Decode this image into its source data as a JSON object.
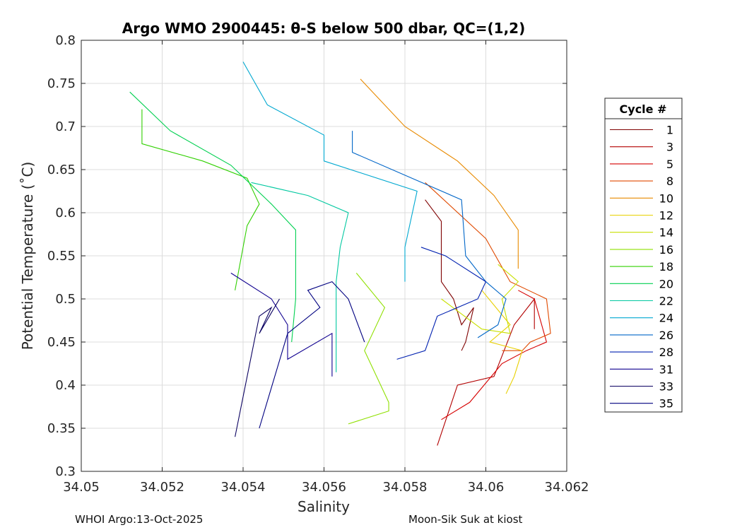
{
  "chart_data": {
    "type": "line",
    "title": "Argo WMO 2900445: θ-S below 500 dbar,  QC=(1,2)",
    "xlabel": "Salinity",
    "ylabel": "Potential Temperature (˚C)",
    "xlim": [
      34.05,
      34.062
    ],
    "ylim": [
      0.3,
      0.8
    ],
    "xticks": [
      34.05,
      34.052,
      34.054,
      34.056,
      34.058,
      34.06,
      34.062
    ],
    "xtick_labels": [
      "34.05",
      "34.052",
      "34.054",
      "34.056",
      "34.058",
      "34.06",
      "34.062"
    ],
    "yticks": [
      0.3,
      0.35,
      0.4,
      0.45,
      0.5,
      0.55,
      0.6,
      0.65,
      0.7,
      0.75,
      0.8
    ],
    "ytick_labels": [
      "0.3",
      "0.35",
      "0.4",
      "0.45",
      "0.5",
      "0.55",
      "0.6",
      "0.65",
      "0.7",
      "0.75",
      "0.8"
    ],
    "grid": true,
    "legend_title": "Cycle #",
    "legend_position": "outside-right",
    "series": [
      {
        "name": "1",
        "color": "#7f0000",
        "x": [
          34.0585,
          34.0589,
          34.0589,
          34.0592,
          34.0594,
          34.0597,
          34.0595,
          34.0594
        ],
        "y": [
          0.615,
          0.59,
          0.52,
          0.5,
          0.47,
          0.49,
          0.45,
          0.44
        ]
      },
      {
        "name": "3",
        "color": "#b20000",
        "x": [
          34.0588,
          34.0593,
          34.0602,
          34.0607,
          34.0612,
          34.0612
        ],
        "y": [
          0.33,
          0.4,
          0.41,
          0.47,
          0.5,
          0.465
        ]
      },
      {
        "name": "5",
        "color": "#d60000",
        "x": [
          34.0589,
          34.0596,
          34.0604,
          34.061,
          34.0615,
          34.0612,
          34.0608
        ],
        "y": [
          0.36,
          0.38,
          0.425,
          0.44,
          0.45,
          0.5,
          0.51
        ]
      },
      {
        "name": "8",
        "color": "#e04a00",
        "x": [
          34.0585,
          34.06,
          34.0606,
          34.0615,
          34.0616,
          34.0611,
          34.0609,
          34.0604
        ],
        "y": [
          0.635,
          0.57,
          0.52,
          0.5,
          0.46,
          0.45,
          0.44,
          0.44
        ]
      },
      {
        "name": "10",
        "color": "#e88a00",
        "x": [
          34.0569,
          34.058,
          34.0593,
          34.0602,
          34.0608,
          34.0608
        ],
        "y": [
          0.755,
          0.7,
          0.66,
          0.62,
          0.58,
          0.535
        ]
      },
      {
        "name": "12",
        "color": "#e8d000",
        "x": [
          34.0599,
          34.0606,
          34.0601,
          34.0609,
          34.0607,
          34.0605
        ],
        "y": [
          0.51,
          0.47,
          0.45,
          0.44,
          0.41,
          0.39
        ]
      },
      {
        "name": "14",
        "color": "#c8e000",
        "x": [
          34.0589,
          34.0599,
          34.0606,
          34.0604,
          34.0608,
          34.0603
        ],
        "y": [
          0.5,
          0.465,
          0.46,
          0.5,
          0.52,
          0.54
        ]
      },
      {
        "name": "16",
        "color": "#8fe000",
        "x": [
          34.0566,
          34.0576,
          34.0576,
          34.057,
          34.0575,
          34.0568
        ],
        "y": [
          0.355,
          0.37,
          0.38,
          0.44,
          0.49,
          0.53
        ]
      },
      {
        "name": "18",
        "color": "#30d000",
        "x": [
          34.0515,
          34.0515,
          34.053,
          34.0541,
          34.0544,
          34.0541,
          34.0538
        ],
        "y": [
          0.72,
          0.68,
          0.66,
          0.64,
          0.61,
          0.585,
          0.51
        ]
      },
      {
        "name": "20",
        "color": "#00d050",
        "x": [
          34.0512,
          34.0522,
          34.0537,
          34.0547,
          34.0553,
          34.0553,
          34.0552
        ],
        "y": [
          0.74,
          0.695,
          0.655,
          0.61,
          0.58,
          0.5,
          0.45
        ]
      },
      {
        "name": "22",
        "color": "#00c8a0",
        "x": [
          34.0542,
          34.0556,
          34.0566,
          34.0564,
          34.0563,
          34.0563
        ],
        "y": [
          0.635,
          0.62,
          0.6,
          0.56,
          0.52,
          0.415
        ]
      },
      {
        "name": "24",
        "color": "#00a8d0",
        "x": [
          34.054,
          34.0546,
          34.056,
          34.056,
          34.0583,
          34.058,
          34.058
        ],
        "y": [
          0.775,
          0.725,
          0.69,
          0.66,
          0.625,
          0.56,
          0.52
        ]
      },
      {
        "name": "26",
        "color": "#0066c8",
        "x": [
          34.0567,
          34.0567,
          34.0594,
          34.0595,
          34.06,
          34.0605,
          34.0603,
          34.0598
        ],
        "y": [
          0.695,
          0.67,
          0.615,
          0.55,
          0.52,
          0.5,
          0.47,
          0.455
        ]
      },
      {
        "name": "28",
        "color": "#0020b0",
        "x": [
          34.0584,
          34.059,
          34.06,
          34.0598,
          34.0588,
          34.0585,
          34.0578
        ],
        "y": [
          0.56,
          0.55,
          0.52,
          0.5,
          0.48,
          0.44,
          0.43
        ]
      },
      {
        "name": "31",
        "color": "#100090",
        "x": [
          34.0537,
          34.0547,
          34.0551,
          34.0551,
          34.0562,
          34.0562
        ],
        "y": [
          0.53,
          0.5,
          0.47,
          0.43,
          0.46,
          0.41
        ]
      },
      {
        "name": "33",
        "color": "#0a0060",
        "x": [
          34.0538,
          34.0544,
          34.0547,
          34.0544,
          34.0549
        ],
        "y": [
          0.34,
          0.48,
          0.49,
          0.46,
          0.5
        ]
      },
      {
        "name": "35",
        "color": "#000080",
        "x": [
          34.0544,
          34.0551,
          34.0559,
          34.0556,
          34.0562,
          34.0566,
          34.057
        ],
        "y": [
          0.35,
          0.46,
          0.49,
          0.51,
          0.52,
          0.5,
          0.45
        ]
      }
    ]
  },
  "footer": {
    "left": "WHOI Argo:13-Oct-2025",
    "right": "Moon-Sik Suk at kiost"
  }
}
